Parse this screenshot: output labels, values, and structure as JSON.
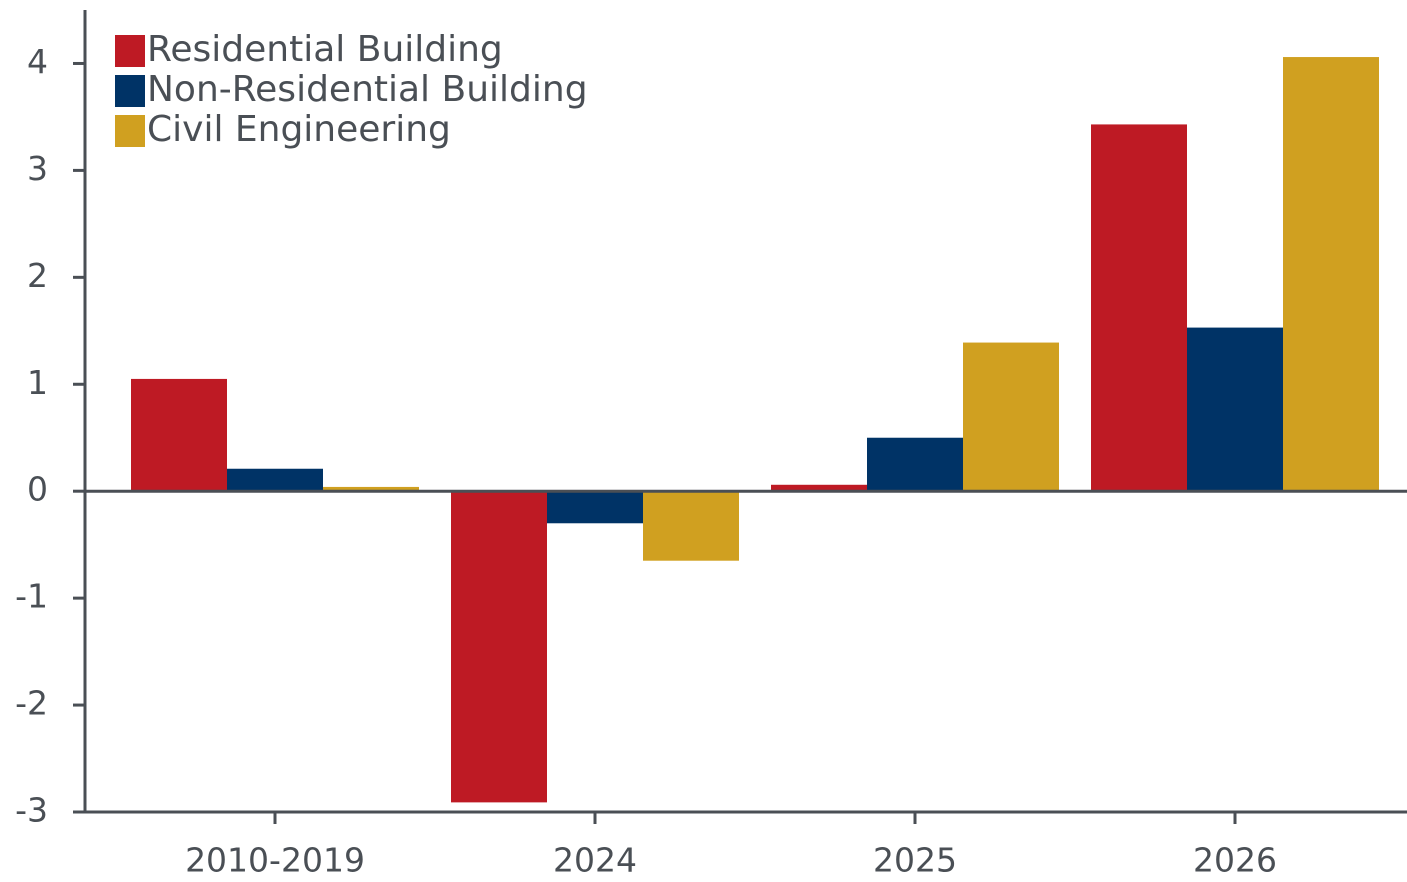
{
  "chart_data": {
    "type": "bar",
    "categories": [
      "2010-2019",
      "2024",
      "2025",
      "2026"
    ],
    "series": [
      {
        "name": "Residential Building",
        "color": "#be1a24",
        "values": [
          1.05,
          -2.91,
          0.06,
          3.43
        ]
      },
      {
        "name": "Non-Residential Building",
        "color": "#003366",
        "values": [
          0.21,
          -0.3,
          0.5,
          1.53
        ]
      },
      {
        "name": "Civil Engineering",
        "color": "#d0a020",
        "values": [
          0.04,
          -0.65,
          1.39,
          4.06
        ]
      }
    ],
    "ylim": [
      -3,
      4.5
    ],
    "yticks": [
      -3,
      -2,
      -1,
      0,
      1,
      2,
      3,
      4
    ],
    "grid": false,
    "legend": "top-left"
  }
}
